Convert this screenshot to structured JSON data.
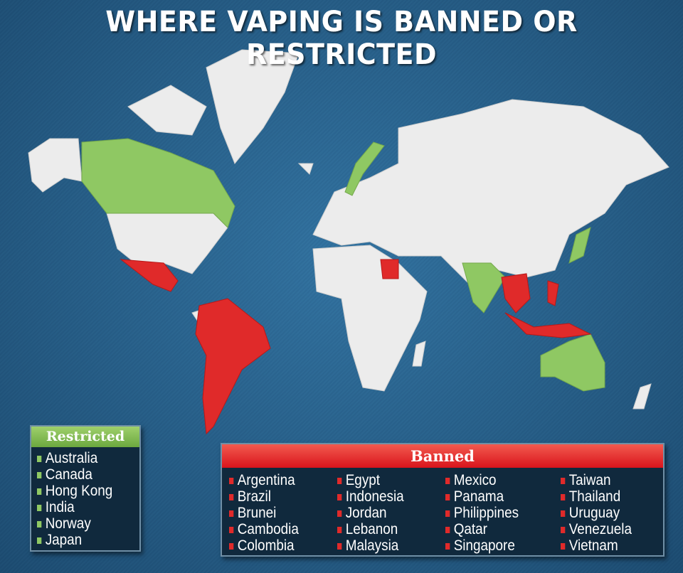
{
  "title": "WHERE VAPING IS BANNED OR RESTRICTED",
  "colors": {
    "restricted": "#8fc863",
    "banned": "#e02a2a",
    "land": "#ececec",
    "ocean": "#2c6891"
  },
  "legend": {
    "restricted": {
      "label": "Restricted",
      "countries": [
        "Australia",
        "Canada",
        "Hong Kong",
        "India",
        "Norway",
        "Japan"
      ]
    },
    "banned": {
      "label": "Banned",
      "columns": [
        [
          "Argentina",
          "Brazil",
          "Brunei",
          "Cambodia",
          "Colombia"
        ],
        [
          "Egypt",
          "Indonesia",
          "Jordan",
          "Lebanon",
          "Malaysia"
        ],
        [
          "Mexico",
          "Panama",
          "Philippines",
          "Qatar",
          "Singapore"
        ],
        [
          "Taiwan",
          "Thailand",
          "Uruguay",
          "Venezuela",
          "Vietnam"
        ]
      ]
    }
  }
}
